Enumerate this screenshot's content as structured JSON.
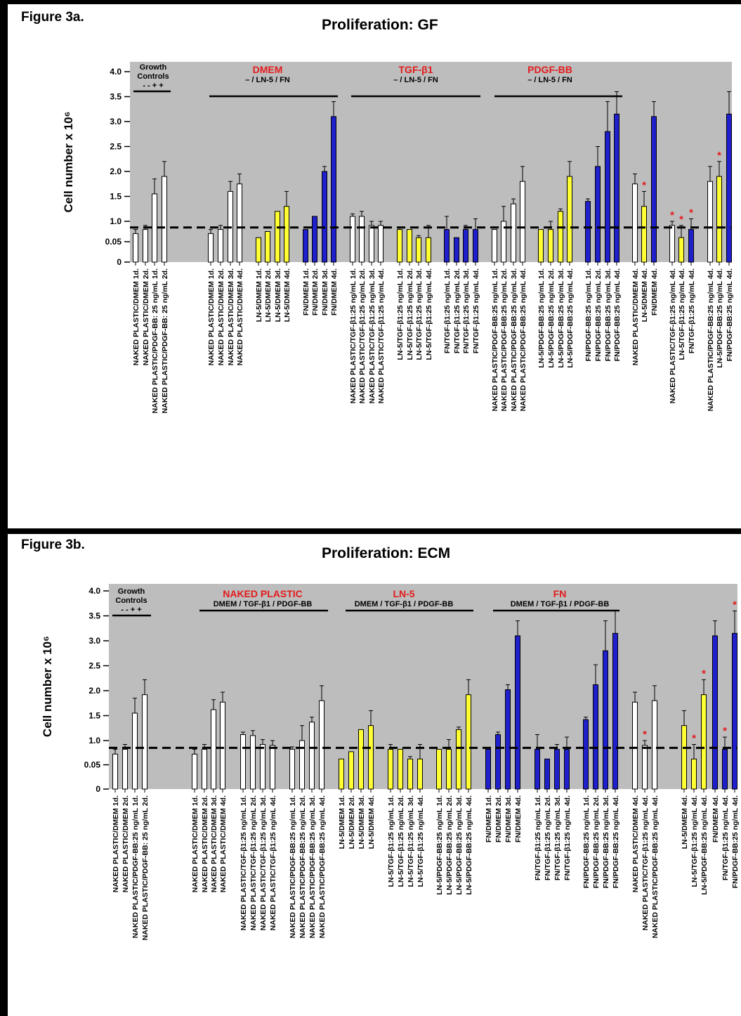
{
  "figures": [
    {
      "label": "Figure 3a.",
      "title": "Proliferation: GF",
      "ylabel": "Cell number x 10⁶",
      "yticks": [
        "4.0",
        "3.5",
        "3.0",
        "2.5",
        "2.0",
        "1.5",
        "1.0",
        "0.05",
        "0"
      ],
      "groups": [
        {
          "title": "Growth",
          "lines": [
            "Controls",
            "-  -  +  +"
          ],
          "color": "#000000"
        },
        {
          "title": "DMEM",
          "lines": [
            "– / LN-5 / FN"
          ],
          "color": "#e41a1c"
        },
        {
          "title": "TGF-β1",
          "lines": [
            "– / LN-5 / FN"
          ],
          "color": "#e41a1c"
        },
        {
          "title": "PDGF-BB",
          "lines": [
            "– / LN-5 / FN"
          ],
          "color": "#e41a1c"
        }
      ],
      "stars_text": "*"
    },
    {
      "label": "Figure 3b.",
      "title": "Proliferation: ECM",
      "ylabel": "Cell number x 10⁶",
      "yticks": [
        "4.0",
        "3.5",
        "3.0",
        "2.5",
        "2.0",
        "1.5",
        "1.0",
        "0.05",
        "0"
      ],
      "groups": [
        {
          "title": "Growth",
          "lines": [
            "Controls",
            "-  -  +  +"
          ],
          "color": "#000000"
        },
        {
          "title": "NAKED PLASTIC",
          "lines": [
            "DMEM / TGF-β1 / PDGF-BB"
          ],
          "color": "#e41a1c"
        },
        {
          "title": "LN-5",
          "lines": [
            "DMEM / TGF-β1 / PDGF-BB"
          ],
          "color": "#e41a1c"
        },
        {
          "title": "FN",
          "lines": [
            "DMEM / TGF-β1 / PDGF-BB"
          ],
          "color": "#e41a1c"
        }
      ],
      "stars_text": "*"
    }
  ],
  "colors": {
    "white": "#ffffff",
    "yellow": "#ffff33",
    "blue": "#1f1fcc",
    "panel": "#bdbdbd",
    "star": "#e41a1c"
  },
  "chart_data": [
    {
      "type": "bar",
      "title": "Proliferation: GF",
      "ylabel": "Cell number x 10⁶",
      "ylim": [
        0,
        4.0
      ],
      "reference_line": 0.85,
      "categories": [
        "NAKED PLASTIC/DMEM 1d.",
        "NAKED PLASTIC/DMEM 2d.",
        "NAKED PLASTIC/PDGF-BB: 25 ng/mL 1d.",
        "NAKED PLASTIC/PDGF-BB: 25 ng/mL 2d.",
        "NAKED PLASTIC/DMEM 1d.",
        "NAKED PLASTIC/DMEM 2d.",
        "NAKED PLASTIC/DMEM 3d.",
        "NAKED PLASTIC/DMEM 4d.",
        "LN-5/DMEM 1d.",
        "LN-5/DMEM 2d.",
        "LN-5/DMEM 3d.",
        "LN-5/DMEM 4d.",
        "FN/DMEM 1d.",
        "FN/DMEM 2d.",
        "FN/DMEM 3d.",
        "FN/DMEM 4d.",
        "NAKED PLASTIC/TGF-β1:25 ng/mL 1d.",
        "NAKED PLASTIC/TGF-β1:25 ng/mL 2d.",
        "NAKED PLASTIC/TGF-β1:25 ng/mL 3d.",
        "NAKED PLASTIC/TGF-β1:25 ng/mL 4d.",
        "LN-5/TGF-β1:25 ng/mL 1d.",
        "LN-5/TGF-β1:25 ng/mL 2d.",
        "LN-5/TGF-β1:25 ng/mL 3d.",
        "LN-5/TGF-β1:25 ng/mL 4d.",
        "FN/TGF-β1:25 ng/mL 1d.",
        "FN/TGF-β1:25 ng/mL 2d.",
        "FN/TGF-β1:25 ng/mL 3d.",
        "FN/TGF-β1:25 ng/mL 4d.",
        "NAKED PLASTIC/PDGF-BB:25 ng/mL 1d.",
        "NAKED PLASTIC/PDGF-BB:25 ng/mL 2d.",
        "NAKED PLASTIC/PDGF-BB:25 ng/mL 3d.",
        "NAKED PLASTIC/PDGF-BB:25 ng/mL 4d.",
        "LN-5/PDGF-BB:25 ng/mL 1d.",
        "LN-5/PDGF-BB:25 ng/mL 2d.",
        "LN-5/PDGF-BB:25 ng/mL 3d.",
        "LN-5/PDGF-BB:25 ng/mL 4d.",
        "FN/PDGF-BB:25 ng/mL 1d.",
        "FN/PDGF-BB:25 ng/mL 2d.",
        "FN/PDGF-BB:25 ng/mL 3d.",
        "FN/PDGF-BB:25 ng/mL 4d.",
        "NAKED PLASTIC/DMEM 4d.",
        "LN-5/DMEM 4d.",
        "FN/DMEM 4d.",
        "NAKED PLASTIC/TGF-β1:25 ng/mL 4d.",
        "LN-5/TGF-β1:25 ng/mL 4d.",
        "FN/TGF-β1:25 ng/mL 4d.",
        "NAKED PLASTIC/PDGF-BB:25 ng/mL 4d.",
        "LN-5/PDGF-BB:25 ng/mL 4d.",
        "FN/PDGF-BB:25 ng/mL 4d."
      ],
      "values": [
        0.7,
        0.8,
        1.55,
        1.9,
        0.7,
        0.8,
        1.6,
        1.75,
        0.6,
        0.75,
        1.2,
        1.3,
        0.8,
        1.1,
        2.0,
        3.1,
        1.1,
        1.1,
        0.9,
        0.9,
        0.8,
        0.8,
        0.6,
        0.6,
        0.8,
        0.6,
        0.8,
        0.8,
        0.8,
        1.0,
        1.35,
        1.8,
        0.8,
        0.8,
        1.2,
        1.9,
        1.4,
        2.1,
        2.8,
        3.15,
        1.75,
        1.3,
        3.1,
        0.9,
        0.6,
        0.8,
        1.8,
        1.9,
        3.15
      ],
      "errors": [
        0.1,
        0.1,
        0.3,
        0.3,
        0.1,
        0.1,
        0.2,
        0.2,
        0,
        0,
        0,
        0.3,
        0,
        0,
        0.1,
        0.3,
        0.05,
        0.1,
        0.1,
        0.1,
        0.05,
        0,
        0.05,
        0.3,
        0.3,
        0,
        0.1,
        0.25,
        0,
        0.3,
        0.1,
        0.3,
        0,
        0.2,
        0.05,
        0.3,
        0.05,
        0.4,
        0.6,
        0.45,
        0.2,
        0.3,
        0.3,
        0.1,
        0.3,
        0.25,
        0.3,
        0.3,
        0.45
      ],
      "bar_colors": [
        "white",
        "white",
        "white",
        "white",
        "white",
        "white",
        "white",
        "white",
        "yellow",
        "yellow",
        "yellow",
        "yellow",
        "blue",
        "blue",
        "blue",
        "blue",
        "white",
        "white",
        "white",
        "white",
        "yellow",
        "yellow",
        "yellow",
        "yellow",
        "blue",
        "blue",
        "blue",
        "blue",
        "white",
        "white",
        "white",
        "white",
        "yellow",
        "yellow",
        "yellow",
        "yellow",
        "blue",
        "blue",
        "blue",
        "blue",
        "white",
        "yellow",
        "blue",
        "white",
        "yellow",
        "blue",
        "white",
        "yellow",
        "blue"
      ],
      "starred": [
        41,
        43,
        44,
        45,
        47
      ]
    },
    {
      "type": "bar",
      "title": "Proliferation: ECM",
      "ylabel": "Cell number x 10⁶",
      "ylim": [
        0,
        4.0
      ],
      "reference_line": 0.85,
      "categories": [
        "NAKED PLASTIC/DMEM 1d.",
        "NAKED PLASTIC/DMEM 2d.",
        "NAKED PLASTIC/PDGF-BB:25 ng/mL 1d.",
        "NAKED PLASTIC/PDGF-BB: 25 ng/mL 2d.",
        "NAKED PLASTIC/DMEM 1d.",
        "NAKED PLASTIC/DMEM 2d.",
        "NAKED PLASTIC/DMEM 3d.",
        "NAKED PLASTIC/DMEM 4d.",
        "NAKED PLASTIC/TGF-β1:25 ng/mL 1d.",
        "NAKED PLASTIC/TGF-β1:25 ng/mL 2d.",
        "NAKED PLASTIC/TGF-β1:25 ng/mL 3d.",
        "NAKED PLASTIC/TGF-β1:25 ng/mL 4d.",
        "NAKED PLASTIC/PDGF-BB:25 ng/mL 1d.",
        "NAKED PLASTIC/PDGF-BB:25 ng/mL 2d.",
        "NAKED PLASTIC/PDGF-BB:25 ng/mL 3d.",
        "NAKED PLASTIC/PDGF-BB:25 ng/mL 4d.",
        "LN-5/DMEM 1d.",
        "LN-5/DMEM 2d.",
        "LN-5/DMEM 3d.",
        "LN-5/DMEM 4d.",
        "LN-5/TGF-β1:25 ng/mL 1d.",
        "LN-5/TGF-β1:25 ng/mL 2d.",
        "LN-5/TGF-β1:25 ng/mL 3d.",
        "LN-5/TGF-β1:25 ng/mL 4d.",
        "LN-5/PDGF-BB:25 ng/mL 1d.",
        "LN-5/PDGF-BB:25 ng/mL 2d.",
        "LN-5/PDGF-BB:25 ng/mL 3d.",
        "LN-5/PDGF-BB:25 ng/mL 4d.",
        "FN/DMEM 1d.",
        "FN/DMEM 2d.",
        "FN/DMEM 3d.",
        "FN/DMEM 4d.",
        "FN/TGF-β1:25 ng/mL 1d.",
        "FN/TGF-β1:25 ng/mL 2d.",
        "FN/TGF-β1:25 ng/mL 3d.",
        "FN/TGF-β1:25 ng/mL 4d.",
        "FN/PDGF-BB:25 ng/mL 1d.",
        "FN/PDGF-BB:25 ng/mL 2d.",
        "FN/PDGF-BB:25 ng/mL 3d.",
        "FN/PDGF-BB:25 ng/mL 4d.",
        "NAKED PLASTIC/DMEM 4d.",
        "NAKED PLASTIC/TGF-β1:25 ng/mL 4d.",
        "NAKED PLASTIC/PDGF-BB:25 ng/mL 4d.",
        "LN-5/DMEM 4d.",
        "LN-5/TGF-β1:25 ng/mL 4d.",
        "LN-5/PDGF-BB:25 ng/mL 4d.",
        "FN/DMEM 4d.",
        "FN/TGF-β1:25 ng/mL 4d.",
        "FN/PDGF-BB:25 ng/mL 4d."
      ],
      "values": [
        0.72,
        0.82,
        1.55,
        1.92,
        0.72,
        0.82,
        1.62,
        1.77,
        1.12,
        1.1,
        0.92,
        0.9,
        0.82,
        1.0,
        1.37,
        1.8,
        0.62,
        0.77,
        1.22,
        1.3,
        0.82,
        0.82,
        0.62,
        0.62,
        0.82,
        0.82,
        1.22,
        1.92,
        0.82,
        1.12,
        2.02,
        3.1,
        0.82,
        0.62,
        0.82,
        0.82,
        1.42,
        2.12,
        2.8,
        3.15,
        1.77,
        0.9,
        1.8,
        1.3,
        0.62,
        1.92,
        3.1,
        0.82,
        3.15
      ],
      "errors": [
        0.1,
        0.1,
        0.3,
        0.3,
        0.1,
        0.1,
        0.2,
        0.2,
        0.05,
        0.1,
        0.1,
        0.1,
        0.05,
        0.3,
        0.1,
        0.3,
        0,
        0,
        0,
        0.3,
        0.1,
        0,
        0.05,
        0.3,
        0,
        0.2,
        0.05,
        0.3,
        0,
        0.05,
        0.1,
        0.3,
        0.3,
        0,
        0.1,
        0.25,
        0.05,
        0.4,
        0.6,
        0.45,
        0.2,
        0.1,
        0.3,
        0.3,
        0.3,
        0.3,
        0.3,
        0.25,
        0.45
      ],
      "bar_colors": [
        "white",
        "white",
        "white",
        "white",
        "white",
        "white",
        "white",
        "white",
        "white",
        "white",
        "white",
        "white",
        "white",
        "white",
        "white",
        "white",
        "yellow",
        "yellow",
        "yellow",
        "yellow",
        "yellow",
        "yellow",
        "yellow",
        "yellow",
        "yellow",
        "yellow",
        "yellow",
        "yellow",
        "blue",
        "blue",
        "blue",
        "blue",
        "blue",
        "blue",
        "blue",
        "blue",
        "blue",
        "blue",
        "blue",
        "blue",
        "white",
        "white",
        "white",
        "yellow",
        "yellow",
        "yellow",
        "blue",
        "blue",
        "blue"
      ],
      "starred": [
        41,
        44,
        45,
        47,
        48
      ]
    }
  ]
}
